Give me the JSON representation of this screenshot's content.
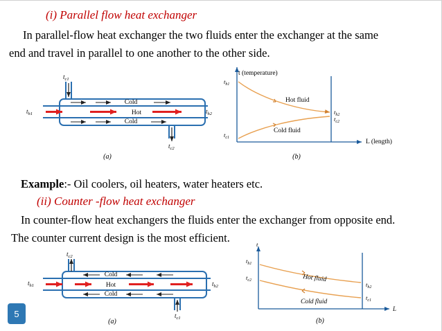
{
  "section1": {
    "heading": "(i)  Parallel flow heat exchanger",
    "line1": "In parallel-flow heat exchanger the two fluids enter the exchanger at the same",
    "line2": "end and travel in parallel to one another to the other side."
  },
  "example": {
    "label": "Example",
    "text": ":-  Oil coolers, oil heaters, water heaters etc."
  },
  "section2": {
    "heading": "(ii)  Counter -flow heat exchanger",
    "line1": "In counter-flow heat exchangers the fluids enter the exchanger from opposite end.",
    "line2": "The counter current design is the most efficient."
  },
  "fig1": {
    "tc1": "t",
    "tc1_sub": "c1",
    "th1": "t",
    "th1_sub": "h1",
    "th2": "t",
    "th2_sub": "h2",
    "tc2": "t",
    "tc2_sub": "c2",
    "cold_top": "Cold",
    "hot": "Hot",
    "cold_bottom": "Cold",
    "caption_a": "(a)"
  },
  "graph1": {
    "yaxis": "t (temperature)",
    "xaxis": "L (length)",
    "hot_fluid": "Hot fluid",
    "cold_fluid": "Cold fluid",
    "th1": "t",
    "th1_sub": "h1",
    "tc1": "t",
    "tc1_sub": "c1",
    "th2": "t",
    "th2_sub": "h2",
    "tc2": "t",
    "tc2_sub": "c2",
    "caption_b": "(b)"
  },
  "fig2": {
    "tc2": "t",
    "tc2_sub": "c2",
    "th1": "t",
    "th1_sub": "h1",
    "th2": "t",
    "th2_sub": "h2",
    "tc1": "t",
    "tc1_sub": "c1",
    "cold_top": "Cold",
    "hot": "Hot",
    "cold_bottom": "Cold",
    "caption_a": "(a)"
  },
  "graph2": {
    "yaxis": "t",
    "xaxis": "L",
    "hot_fluid": "Hot fluid",
    "cold_fluid": "Cold fluid",
    "th1": "t",
    "th1_sub": "h1",
    "tc2": "t",
    "tc2_sub": "c2",
    "th2": "t",
    "th2_sub": "h2",
    "tc1": "t",
    "tc1_sub": "c1",
    "caption_b": "(b)"
  },
  "slide_number": "5",
  "colors": {
    "heading": "#c00000",
    "hot_arrow": "#e02020",
    "curve": "#e8a050",
    "tube": "#2a6fb0",
    "badge": "#2e78b4"
  }
}
